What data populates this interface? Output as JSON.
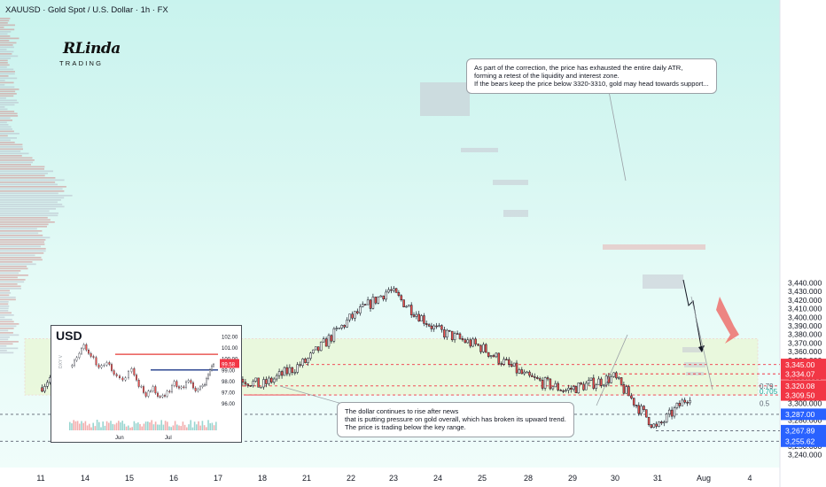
{
  "header": {
    "title": "XAUUSD · Gold Spot / U.S. Dollar · 1h · FX"
  },
  "logo": {
    "main": "RLinda",
    "sub": "TRADING"
  },
  "callouts": {
    "top": [
      "As part of the correction, the price has exhausted the entire daily ATR,",
      "forming a retest of the liquidity and interest zone.",
      "If the bears keep the price below 3320-3310, gold may head towards support..."
    ],
    "bottom": [
      "The dollar continues to rise after news",
      "that is putting pressure on gold overall, which has broken its upward trend.",
      "The price is trading below the key range."
    ]
  },
  "colors": {
    "up": "#ffffff",
    "down": "#ef5350",
    "wick": "#131722",
    "level_red": "#f23645",
    "level_blue": "#2962ff"
  },
  "chart_data": {
    "type": "candlestick",
    "symbol": "XAUUSD",
    "timeframe": "1h",
    "ylim": [
      3235,
      3445
    ],
    "y_ticks": [
      3240,
      3250,
      3260,
      3270,
      3280,
      3290,
      3300,
      3310,
      3320,
      3330,
      3340,
      3350,
      3360,
      3370,
      3380,
      3390,
      3400,
      3410,
      3420,
      3430,
      3440
    ],
    "x_labels": [
      "11",
      "14",
      "15",
      "16",
      "17",
      "18",
      "21",
      "22",
      "23",
      "24",
      "25",
      "28",
      "29",
      "30",
      "31",
      "Aug",
      "4"
    ],
    "price_labels": [
      {
        "value": "3,345.00",
        "color": "#f23645"
      },
      {
        "value": "3,334.07",
        "color": "#f23645"
      },
      {
        "value": "3,320.08",
        "color": "#f23645"
      },
      {
        "value": "3,309.50",
        "color": "#f23645"
      },
      {
        "value": "3,287.00",
        "color": "#2962ff"
      },
      {
        "value": "3,267.89",
        "color": "#2962ff"
      },
      {
        "value": "3,255.62",
        "color": "#2962ff"
      }
    ],
    "fib_labels": [
      {
        "label": "0.79",
        "price": 3320.1
      },
      {
        "label": "0.705",
        "price": 3313.6
      },
      {
        "label": "0.5",
        "price": 3300
      }
    ],
    "levels": [
      3345,
      3334.07,
      3320.08,
      3309.5,
      3287,
      3267.89,
      3255.62
    ],
    "key_points": [
      {
        "x": "11",
        "price": 3318
      },
      {
        "x": "14",
        "price": 3366
      },
      {
        "x": "15",
        "price": 3342
      },
      {
        "x": "16",
        "price": 3330
      },
      {
        "x": "17",
        "price": 3340
      },
      {
        "x": "18",
        "price": 3320
      },
      {
        "x": "21",
        "price": 3348
      },
      {
        "x": "22",
        "price": 3398
      },
      {
        "x": "23",
        "price": 3432
      },
      {
        "x": "24",
        "price": 3385
      },
      {
        "x": "25",
        "price": 3365
      },
      {
        "x": "28",
        "price": 3330
      },
      {
        "x": "29",
        "price": 3315
      },
      {
        "x": "30",
        "price": 3330
      },
      {
        "x": "31",
        "price": 3270
      },
      {
        "x": "31",
        "price": 3310
      }
    ]
  },
  "inset": {
    "title": "USD",
    "y_ticks": [
      "102.00",
      "101.00",
      "100.00",
      "99.58",
      "99.00",
      "98.00",
      "97.00",
      "96.00"
    ],
    "x_labels": [
      "Jun",
      "Jul"
    ],
    "side_label": "DXY V"
  }
}
